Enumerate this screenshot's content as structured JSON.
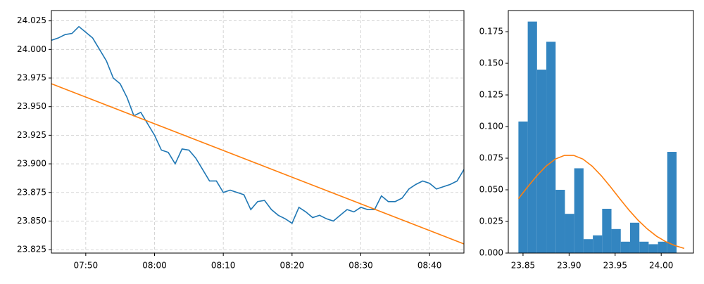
{
  "chart_data": [
    {
      "type": "line",
      "x": [
        "07:45",
        "07:46",
        "07:47",
        "07:48",
        "07:49",
        "07:50",
        "07:51",
        "07:52",
        "07:53",
        "07:54",
        "07:55",
        "07:56",
        "07:57",
        "07:58",
        "07:59",
        "08:00",
        "08:01",
        "08:02",
        "08:03",
        "08:04",
        "08:05",
        "08:06",
        "08:07",
        "08:08",
        "08:09",
        "08:10",
        "08:11",
        "08:12",
        "08:13",
        "08:14",
        "08:15",
        "08:16",
        "08:17",
        "08:18",
        "08:19",
        "08:20",
        "08:21",
        "08:22",
        "08:23",
        "08:24",
        "08:25",
        "08:26",
        "08:27",
        "08:28",
        "08:29",
        "08:30",
        "08:31",
        "08:32",
        "08:33",
        "08:34",
        "08:35",
        "08:36",
        "08:37",
        "08:38",
        "08:39",
        "08:40",
        "08:41",
        "08:42",
        "08:43",
        "08:44",
        "08:45"
      ],
      "series": [
        {
          "color": "#1f77b4",
          "values": [
            24.008,
            24.01,
            24.013,
            24.014,
            24.02,
            24.015,
            24.01,
            24.0,
            23.99,
            23.975,
            23.97,
            23.958,
            23.942,
            23.945,
            23.935,
            23.925,
            23.912,
            23.91,
            23.9,
            23.913,
            23.912,
            23.905,
            23.895,
            23.885,
            23.885,
            23.875,
            23.877,
            23.875,
            23.873,
            23.86,
            23.867,
            23.868,
            23.86,
            23.855,
            23.852,
            23.848,
            23.862,
            23.858,
            23.853,
            23.855,
            23.852,
            23.85,
            23.855,
            23.86,
            23.858,
            23.862,
            23.86,
            23.86,
            23.872,
            23.867,
            23.867,
            23.87,
            23.878,
            23.882,
            23.885,
            23.883,
            23.878,
            23.88,
            23.882,
            23.885,
            23.895
          ]
        },
        {
          "color": "#ff7f0e",
          "x": [
            "07:45",
            "08:45"
          ],
          "values": [
            23.97,
            23.83
          ]
        }
      ],
      "xlim": [
        "07:45",
        "08:45"
      ],
      "xticks": [
        "07:50",
        "08:00",
        "08:10",
        "08:20",
        "08:30",
        "08:40"
      ],
      "ylim": [
        23.822,
        24.034
      ],
      "yticks": [
        23.825,
        {
          "value": 23.85,
          "label": "23.850"
        },
        23.875,
        {
          "value": 23.9,
          "label": "23.900"
        },
        23.925,
        {
          "value": 23.95,
          "label": "23.950"
        },
        23.975,
        {
          "value": 24,
          "label": "24.000"
        },
        24.025
      ],
      "grid": true
    },
    {
      "type": "histogram",
      "bins": [
        23.845,
        23.8551,
        23.8652,
        23.8753,
        23.8854,
        23.8955,
        23.9056,
        23.9157,
        23.9258,
        23.9359,
        23.946,
        23.9561,
        23.9662,
        23.9763,
        23.9864,
        23.9965,
        24.0066,
        24.0167
      ],
      "values": [
        0.104,
        0.183,
        0.145,
        0.167,
        0.05,
        0.031,
        0.067,
        0.011,
        0.014,
        0.035,
        0.019,
        0.009,
        0.024,
        0.009,
        0.007,
        0.009,
        0.08
      ],
      "color": "#3385c0",
      "curve": {
        "color": "#ff7f0e",
        "x": [
          23.845,
          23.855,
          23.865,
          23.875,
          23.885,
          23.895,
          23.905,
          23.915,
          23.925,
          23.935,
          23.945,
          23.955,
          23.965,
          23.975,
          23.985,
          23.995,
          24.005,
          24.015,
          24.025
        ],
        "values": [
          0.043,
          0.0523,
          0.0611,
          0.0687,
          0.0743,
          0.0772,
          0.0772,
          0.0743,
          0.0687,
          0.0611,
          0.0523,
          0.043,
          0.034,
          0.0259,
          0.019,
          0.0133,
          0.009,
          0.0059,
          0.0037
        ]
      },
      "xlim": [
        23.834,
        24.035
      ],
      "xticks": [
        23.85,
        {
          "value": 23.9,
          "label": "23.90"
        },
        23.95,
        {
          "value": 24,
          "label": "24.00"
        }
      ],
      "ylim": [
        0,
        0.1917
      ],
      "yticks": [
        {
          "value": 0,
          "label": "0.000"
        },
        0.025,
        {
          "value": 0.05,
          "label": "0.050"
        },
        0.075,
        {
          "value": 0.1,
          "label": "0.100"
        },
        0.125,
        {
          "value": 0.15,
          "label": "0.150"
        },
        0.175
      ],
      "grid": false
    }
  ]
}
